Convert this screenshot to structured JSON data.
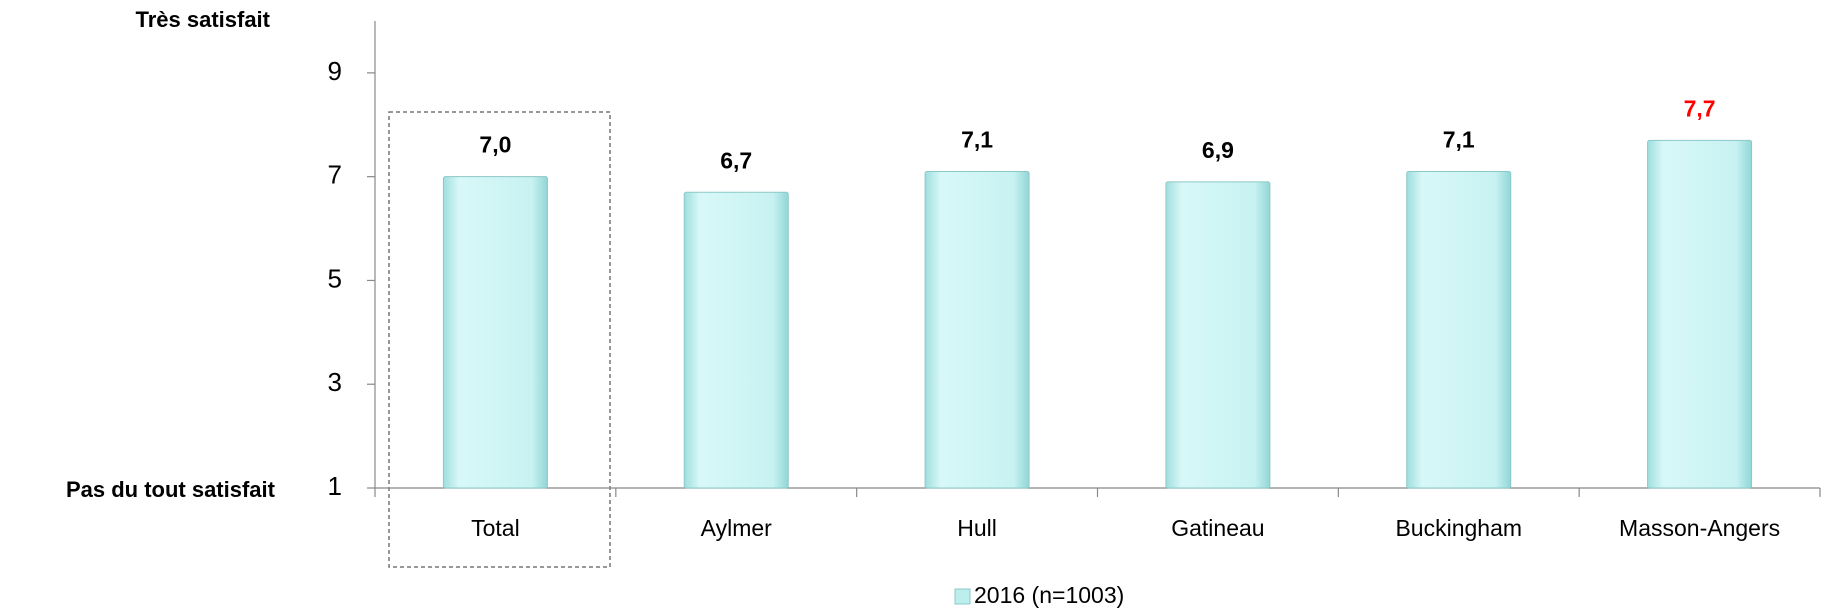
{
  "chart_data": {
    "type": "bar",
    "annotations": {
      "top": "Très satisfait",
      "bottom": "Pas du tout satisfait"
    },
    "categories": [
      "Total",
      "Aylmer",
      "Hull",
      "Gatineau",
      "Buckingham",
      "Masson-Angers"
    ],
    "series": [
      {
        "name": "2016 (n=1003)",
        "color": "#bdeeee",
        "values": [
          7.0,
          6.7,
          7.1,
          6.9,
          7.1,
          7.7
        ],
        "value_labels": [
          "7,0",
          "6,7",
          "7,1",
          "6,9",
          "7,1",
          "7,7"
        ],
        "value_label_colors": [
          "#000000",
          "#000000",
          "#000000",
          "#000000",
          "#000000",
          "#ff0000"
        ]
      }
    ],
    "ylim": [
      1,
      10
    ],
    "yticks": [
      1,
      3,
      5,
      7,
      9
    ],
    "grid": false,
    "legend": "bottom"
  }
}
